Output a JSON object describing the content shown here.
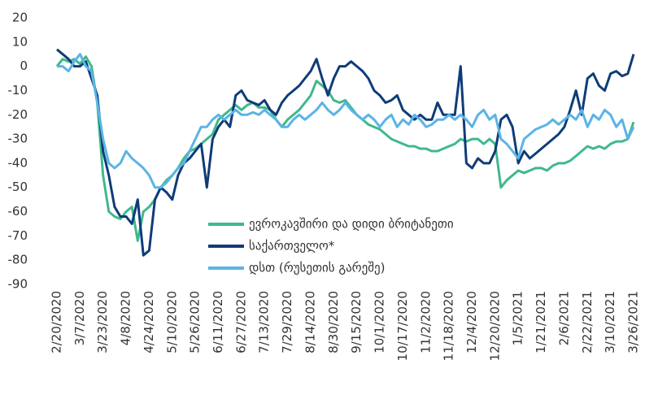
{
  "chart_data": {
    "type": "line",
    "categories": [
      "2/20/2020",
      null,
      null,
      null,
      "3/7/2020",
      null,
      null,
      null,
      "3/23/2020",
      null,
      null,
      null,
      "4/8/2020",
      null,
      null,
      null,
      "4/24/2020",
      null,
      null,
      null,
      "5/10/2020",
      null,
      null,
      null,
      "5/26/2020",
      null,
      null,
      null,
      "6/11/2020",
      null,
      null,
      null,
      "6/27/2020",
      null,
      null,
      null,
      "7/13/2020",
      null,
      null,
      null,
      "7/29/2020",
      null,
      null,
      null,
      "8/14/2020",
      null,
      null,
      null,
      "8/30/2020",
      null,
      null,
      null,
      "9/15/2020",
      null,
      null,
      null,
      "10/1/2020",
      null,
      null,
      null,
      "10/17/2020",
      null,
      null,
      null,
      "11/2/2020",
      null,
      null,
      null,
      "11/18/2020",
      null,
      null,
      null,
      "12/4/2020",
      null,
      null,
      null,
      "12/20/2020",
      null,
      null,
      null,
      "1/5/2021",
      null,
      null,
      null,
      "1/21/2021",
      null,
      null,
      null,
      "2/6/2021",
      null,
      null,
      null,
      "2/22/2021",
      null,
      null,
      null,
      "3/10/2021",
      null,
      null,
      null,
      "3/26/2021"
    ],
    "series": [
      {
        "name": "ევროკავშირი და დიდი ბრიტანეთი",
        "color": "#3fb98b",
        "values": [
          0,
          3,
          2,
          3,
          1,
          4,
          0,
          -15,
          -45,
          -60,
          -62,
          -63,
          -60,
          -58,
          -72,
          -60,
          -58,
          -55,
          -50,
          -47,
          -45,
          -42,
          -38,
          -35,
          -34,
          -32,
          -30,
          -28,
          -22,
          -20,
          -18,
          -16,
          -18,
          -16,
          -15,
          -17,
          -17,
          -18,
          -22,
          -25,
          -22,
          -20,
          -18,
          -15,
          -12,
          -6,
          -8,
          -10,
          -14,
          -15,
          -14,
          -17,
          -20,
          -22,
          -24,
          -25,
          -26,
          -28,
          -30,
          -31,
          -32,
          -33,
          -33,
          -34,
          -34,
          -35,
          -35,
          -34,
          -33,
          -32,
          -30,
          -31,
          -30,
          -30,
          -32,
          -30,
          -32,
          -50,
          -47,
          -45,
          -43,
          -44,
          -43,
          -42,
          -42,
          -43,
          -41,
          -40,
          -40,
          -39,
          -37,
          -35,
          -33,
          -34,
          -33,
          -34,
          -32,
          -31,
          -31,
          -30,
          -23
        ]
      },
      {
        "name": "საქართველო*",
        "color": "#0f3c78",
        "values": [
          7,
          5,
          3,
          0,
          0,
          2,
          -5,
          -12,
          -35,
          -45,
          -58,
          -62,
          -62,
          -65,
          -55,
          -78,
          -76,
          -55,
          -50,
          -52,
          -55,
          -45,
          -40,
          -38,
          -35,
          -32,
          -50,
          -30,
          -25,
          -22,
          -25,
          -12,
          -10,
          -14,
          -15,
          -16,
          -14,
          -18,
          -20,
          -15,
          -12,
          -10,
          -8,
          -5,
          -2,
          3,
          -5,
          -12,
          -5,
          0,
          0,
          2,
          0,
          -2,
          -5,
          -10,
          -12,
          -15,
          -14,
          -12,
          -18,
          -20,
          -22,
          -20,
          -22,
          -22,
          -15,
          -20,
          -20,
          -20,
          0,
          -40,
          -42,
          -38,
          -40,
          -40,
          -35,
          -22,
          -20,
          -25,
          -40,
          -35,
          -38,
          -36,
          -34,
          -32,
          -30,
          -28,
          -25,
          -18,
          -10,
          -20,
          -5,
          -3,
          -8,
          -10,
          -3,
          -2,
          -4,
          -3,
          5
        ]
      },
      {
        "name": "დსთ (რუსეთის გარეშე)",
        "color": "#5bb4e6",
        "values": [
          0,
          0,
          -2,
          2,
          5,
          0,
          -2,
          -15,
          -30,
          -40,
          -42,
          -40,
          -35,
          -38,
          -40,
          -42,
          -45,
          -50,
          -50,
          -48,
          -45,
          -42,
          -40,
          -35,
          -30,
          -25,
          -25,
          -22,
          -20,
          -22,
          -20,
          -18,
          -20,
          -20,
          -19,
          -20,
          -18,
          -20,
          -22,
          -25,
          -25,
          -22,
          -20,
          -22,
          -20,
          -18,
          -15,
          -18,
          -20,
          -18,
          -15,
          -18,
          -20,
          -22,
          -20,
          -22,
          -25,
          -22,
          -20,
          -25,
          -22,
          -24,
          -20,
          -22,
          -25,
          -24,
          -22,
          -22,
          -20,
          -22,
          -20,
          -22,
          -25,
          -20,
          -18,
          -22,
          -20,
          -30,
          -32,
          -35,
          -38,
          -30,
          -28,
          -26,
          -25,
          -24,
          -22,
          -24,
          -22,
          -20,
          -22,
          -18,
          -25,
          -20,
          -22,
          -18,
          -20,
          -25,
          -22,
          -30,
          -25
        ]
      }
    ],
    "ylim": [
      -90,
      20
    ],
    "yticks": [
      -90,
      -80,
      -70,
      -60,
      -50,
      -40,
      -30,
      -20,
      -10,
      0,
      10,
      20
    ],
    "grid": false
  }
}
